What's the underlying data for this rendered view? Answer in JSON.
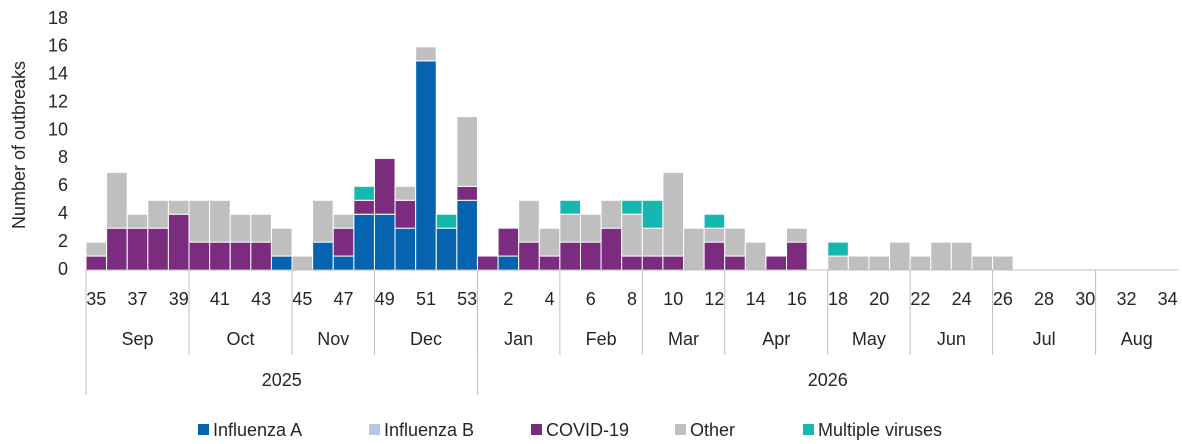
{
  "chart_data": {
    "type": "stacked_bar",
    "y_label": "Number of outbreaks",
    "categories": [
      "35",
      null,
      "37",
      null,
      "39",
      null,
      "41",
      null,
      "43",
      null,
      "45",
      null,
      "47",
      null,
      "49",
      null,
      "51",
      null,
      "53",
      null,
      "2",
      null,
      "4",
      null,
      "6",
      null,
      "8",
      null,
      "10",
      null,
      "12",
      null,
      "14",
      null,
      "16",
      null,
      "18",
      null,
      "20",
      null,
      "22",
      null,
      "24",
      null,
      "26",
      null,
      "28",
      null,
      "30",
      null,
      "32",
      null,
      "34"
    ],
    "months": [
      "Sep",
      "Sep",
      "Sep",
      "Sep",
      "Sep",
      "Oct",
      "Oct",
      "Oct",
      "Oct",
      "Oct",
      "Nov",
      "Nov",
      "Nov",
      "Nov",
      "Dec",
      "Dec",
      "Dec",
      "Dec",
      "Dec",
      "Jan",
      "Jan",
      "Jan",
      "Jan",
      "Feb",
      "Feb",
      "Feb",
      "Feb",
      "Mar",
      "Mar",
      "Mar",
      "Mar",
      "Apr",
      "Apr",
      "Apr",
      "Apr",
      "Apr",
      "May",
      "May",
      "May",
      "May",
      "Jun",
      "Jun",
      "Jun",
      "Jun",
      "Jul",
      "Jul",
      "Jul",
      "Jul",
      "Jul",
      "Aug",
      "Aug",
      "Aug",
      "Aug"
    ],
    "years": [
      "2025",
      "2025",
      "2025",
      "2025",
      "2025",
      "2025",
      "2025",
      "2025",
      "2025",
      "2025",
      "2025",
      "2025",
      "2025",
      "2025",
      "2025",
      "2025",
      "2025",
      "2025",
      "2025",
      "2026",
      "2026",
      "2026",
      "2026",
      "2026",
      "2026",
      "2026",
      "2026",
      "2026",
      "2026",
      "2026",
      "2026",
      "2026",
      "2026",
      "2026",
      "2026",
      "2026",
      "2026",
      "2026",
      "2026",
      "2026",
      "2026",
      "2026",
      "2026",
      "2026",
      "2026",
      "2026",
      "2026",
      "2026",
      "2026",
      "2026",
      "2026",
      "2026",
      "2026"
    ],
    "series": [
      {
        "name": "Influenza A",
        "color": "#0563b0",
        "values": [
          0,
          0,
          0,
          0,
          0,
          0,
          0,
          0,
          0,
          1,
          0,
          2,
          1,
          4,
          4,
          3,
          15,
          3,
          5,
          0,
          1,
          0,
          0,
          0,
          0,
          0,
          0,
          0,
          0,
          0,
          0,
          0,
          0,
          0,
          0,
          0,
          0,
          0,
          0,
          0,
          0,
          0,
          0,
          0,
          0,
          0,
          0,
          0,
          0,
          0,
          0,
          0,
          0
        ]
      },
      {
        "name": "Influenza B",
        "color": "#b4c7e7",
        "values": [
          0,
          0,
          0,
          0,
          0,
          0,
          0,
          0,
          0,
          0,
          0,
          0,
          0,
          0,
          0,
          0,
          0,
          0,
          0,
          0,
          0,
          0,
          0,
          0,
          0,
          0,
          0,
          0,
          0,
          0,
          0,
          0,
          0,
          0,
          0,
          0,
          0,
          0,
          0,
          0,
          0,
          0,
          0,
          0,
          0,
          0,
          0,
          0,
          0,
          0,
          0,
          0,
          0
        ]
      },
      {
        "name": "COVID-19",
        "color": "#7b2c7f",
        "values": [
          1,
          3,
          3,
          3,
          4,
          2,
          2,
          2,
          2,
          0,
          0,
          0,
          2,
          1,
          4,
          2,
          0,
          0,
          1,
          1,
          2,
          2,
          1,
          2,
          2,
          3,
          1,
          1,
          1,
          0,
          2,
          1,
          0,
          1,
          2,
          0,
          0,
          0,
          0,
          0,
          0,
          0,
          0,
          0,
          0,
          0,
          0,
          0,
          0,
          0,
          0,
          0,
          0
        ]
      },
      {
        "name": "Other",
        "color": "#bfbfbf",
        "values": [
          1,
          4,
          1,
          2,
          1,
          3,
          3,
          2,
          2,
          2,
          1,
          3,
          1,
          0,
          0,
          1,
          1,
          0,
          5,
          0,
          0,
          3,
          2,
          2,
          2,
          2,
          3,
          2,
          6,
          3,
          1,
          2,
          2,
          0,
          1,
          0,
          1,
          1,
          1,
          2,
          1,
          2,
          2,
          1,
          1,
          0,
          0,
          0,
          0,
          0,
          0,
          0,
          0
        ]
      },
      {
        "name": "Multiple viruses",
        "color": "#14b8b0",
        "values": [
          0,
          0,
          0,
          0,
          0,
          0,
          0,
          0,
          0,
          0,
          0,
          0,
          0,
          1,
          0,
          0,
          0,
          1,
          0,
          0,
          0,
          0,
          0,
          1,
          0,
          0,
          1,
          2,
          0,
          0,
          1,
          0,
          0,
          0,
          0,
          0,
          1,
          0,
          0,
          0,
          0,
          0,
          0,
          0,
          0,
          0,
          0,
          0,
          0,
          0,
          0,
          0,
          0
        ]
      }
    ],
    "ylim": [
      0,
      18
    ],
    "yticks": [
      0,
      2,
      4,
      6,
      8,
      10,
      12,
      14,
      16,
      18
    ],
    "grid": false,
    "legend": "bottom"
  }
}
